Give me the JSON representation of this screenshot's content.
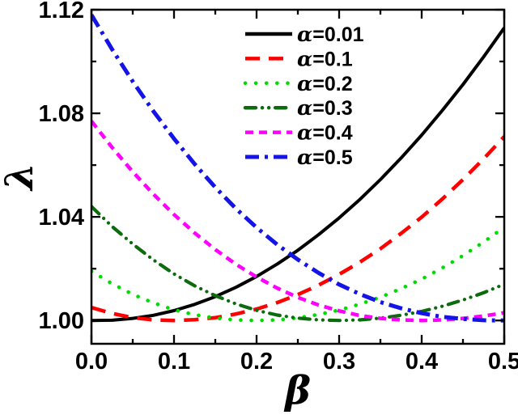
{
  "style": {
    "background": "#ffffff",
    "axis_color": "#000000",
    "tick_label_color": "#000000"
  },
  "chart_data": {
    "type": "line",
    "title": "",
    "xlabel": "β",
    "ylabel": "λ",
    "xlim": [
      0.0,
      0.5
    ],
    "ylim": [
      0.991,
      1.12
    ],
    "grid": false,
    "legend_position": "inside-top-center",
    "x_ticks": [
      0.0,
      0.1,
      0.2,
      0.3,
      0.4,
      0.5
    ],
    "x_tick_labels": [
      "0.0",
      "0.1",
      "0.2",
      "0.3",
      "0.4",
      "0.5"
    ],
    "x_minor_ticks": [
      0.05,
      0.15,
      0.25,
      0.35,
      0.45
    ],
    "y_ticks": [
      1.0,
      1.04,
      1.08,
      1.12
    ],
    "y_tick_labels": [
      "1.00",
      "1.04",
      "1.08",
      "1.12"
    ],
    "y_minor_ticks": [
      1.02,
      1.06,
      1.1
    ],
    "x": [
      0.0,
      0.025,
      0.05,
      0.075,
      0.1,
      0.125,
      0.15,
      0.175,
      0.2,
      0.225,
      0.25,
      0.275,
      0.3,
      0.325,
      0.35,
      0.375,
      0.4,
      0.425,
      0.45,
      0.475,
      0.5
    ],
    "series": [
      {
        "name": "α=0.01",
        "alpha": 0.01,
        "color": "#000000",
        "dash": "",
        "width": 4,
        "linecap": "butt",
        "values": [
          1.0,
          1.0001,
          1.0008,
          1.002,
          1.0038,
          1.0062,
          1.0092,
          1.0128,
          1.017,
          1.0218,
          1.0271,
          1.0331,
          1.0396,
          1.0467,
          1.0544,
          1.0627,
          1.0716,
          1.0811,
          1.0911,
          1.1018,
          1.113
        ]
      },
      {
        "name": "α=0.1",
        "alpha": 0.1,
        "color": "#ff0000",
        "dash": "18 11",
        "width": 4.5,
        "linecap": "butt",
        "values": [
          1.005,
          1.0027,
          1.0011,
          1.0002,
          1.0,
          1.0003,
          1.0011,
          1.0025,
          1.0044,
          1.0069,
          1.01,
          1.0136,
          1.0178,
          1.0225,
          1.0277,
          1.0336,
          1.0399,
          1.0469,
          1.0544,
          1.0624,
          1.071
        ]
      },
      {
        "name": "α=0.2",
        "alpha": 0.2,
        "color": "#00dc00",
        "dash": "0.1 13",
        "width": 4.6,
        "linecap": "round",
        "values": [
          1.019,
          1.0142,
          1.0101,
          1.0068,
          1.0041,
          1.0022,
          1.0009,
          1.0002,
          1.0,
          1.0002,
          1.001,
          1.0023,
          1.004,
          1.0063,
          1.009,
          1.0123,
          1.016,
          1.0203,
          1.025,
          1.0303,
          1.036
        ]
      },
      {
        "name": "α=0.3",
        "alpha": 0.3,
        "color": "#0c6b0c",
        "dash": "13 8 0.1 8 0.1 8",
        "width": 4.2,
        "linecap": "round",
        "values": [
          1.044,
          1.0363,
          1.0295,
          1.0234,
          1.018,
          1.0134,
          1.0096,
          1.0064,
          1.0039,
          1.0021,
          1.0009,
          1.0002,
          1.0,
          1.0002,
          1.0009,
          1.002,
          1.0035,
          1.0055,
          1.0079,
          1.0107,
          1.014
        ]
      },
      {
        "name": "α=0.4",
        "alpha": 0.4,
        "color": "#ff00ff",
        "dash": "10 7",
        "width": 4.5,
        "linecap": "butt",
        "values": [
          1.077,
          1.0668,
          1.0574,
          1.0488,
          1.0409,
          1.0338,
          1.0274,
          1.0217,
          1.0168,
          1.0125,
          1.0089,
          1.006,
          1.0037,
          1.0019,
          1.0008,
          1.0002,
          1.0,
          1.0002,
          1.0008,
          1.0017,
          1.003
        ]
      },
      {
        "name": "α=0.5",
        "alpha": 0.5,
        "color": "#1414e6",
        "dash": "17 7 4 7",
        "width": 5,
        "linecap": "butt",
        "values": [
          1.118,
          1.1047,
          1.0923,
          1.0808,
          1.0702,
          1.0604,
          1.0514,
          1.0432,
          1.0359,
          1.0293,
          1.0235,
          1.0184,
          1.0139,
          1.0102,
          1.0071,
          1.0047,
          1.0028,
          1.0014,
          1.0006,
          1.0001,
          1.0
        ]
      }
    ]
  }
}
